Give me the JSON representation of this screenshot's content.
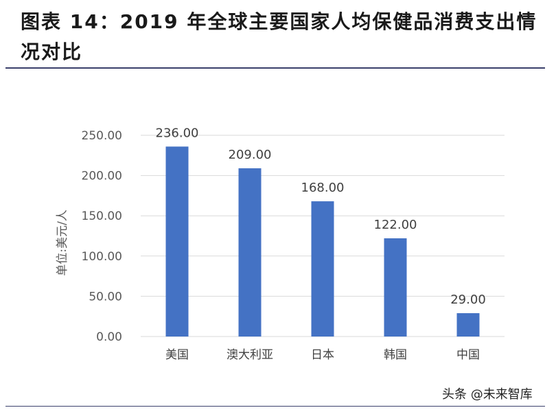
{
  "title": "图表 14：2019 年全球主要国家人均保健品消费支出情况对比",
  "watermark": "头条 @未来智库",
  "colors": {
    "bar": "#4472c4",
    "grid": "#d9d9d9",
    "rule": "#3a3f6b"
  },
  "chart_data": {
    "type": "bar",
    "categories": [
      "美国",
      "澳大利亚",
      "日本",
      "韩国",
      "中国"
    ],
    "values": [
      236.0,
      209.0,
      168.0,
      122.0,
      29.0
    ],
    "data_labels": [
      "236.00",
      "209.00",
      "168.00",
      "122.00",
      "29.00"
    ],
    "ylabel": "单位:美元/人",
    "ylim": [
      0,
      250
    ],
    "yticks": [
      "0.00",
      "50.00",
      "100.00",
      "150.00",
      "200.00",
      "250.00"
    ],
    "ytick_values": [
      0,
      50,
      100,
      150,
      200,
      250
    ],
    "grid": true,
    "legend": "none"
  }
}
